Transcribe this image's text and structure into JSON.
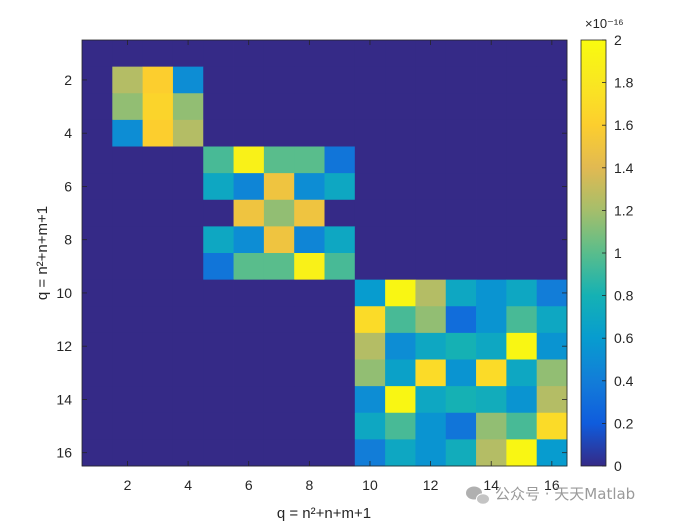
{
  "chart_data": {
    "type": "heatmap",
    "x": [
      1,
      2,
      3,
      4,
      5,
      6,
      7,
      8,
      9,
      10,
      11,
      12,
      13,
      14,
      15,
      16
    ],
    "y": [
      1,
      2,
      3,
      4,
      5,
      6,
      7,
      8,
      9,
      10,
      11,
      12,
      13,
      14,
      15,
      16
    ],
    "xlabel": "q = n²+n+m+1",
    "ylabel": "q = n²+n+m+1",
    "x_ticks": [
      "2",
      "4",
      "6",
      "8",
      "10",
      "12",
      "14",
      "16"
    ],
    "y_ticks": [
      "2",
      "4",
      "6",
      "8",
      "10",
      "12",
      "14",
      "16"
    ],
    "y_direction": "reversed",
    "colormap": "parula",
    "colorbar": {
      "clim": [
        0,
        2
      ],
      "multiplier": "×10⁻¹⁶",
      "ticks": [
        "0",
        "0.2",
        "0.4",
        "0.6",
        "0.8",
        "1",
        "1.2",
        "1.4",
        "1.6",
        "1.8",
        "2"
      ]
    },
    "z_units": "1e-16",
    "z": [
      [
        0.0,
        0.0,
        0.0,
        0.0,
        0.0,
        0.0,
        0.0,
        0.0,
        0.0,
        0.0,
        0.0,
        0.0,
        0.0,
        0.0,
        0.0,
        0.0
      ],
      [
        0.0,
        1.25,
        1.6,
        0.5,
        0.0,
        0.0,
        0.0,
        0.0,
        0.0,
        0.0,
        0.0,
        0.0,
        0.0,
        0.0,
        0.0,
        0.0
      ],
      [
        0.0,
        1.15,
        1.65,
        1.15,
        0.0,
        0.0,
        0.0,
        0.0,
        0.0,
        0.0,
        0.0,
        0.0,
        0.0,
        0.0,
        0.0,
        0.0
      ],
      [
        0.0,
        0.5,
        1.6,
        1.25,
        0.0,
        0.0,
        0.0,
        0.0,
        0.0,
        0.0,
        0.0,
        0.0,
        0.0,
        0.0,
        0.0,
        0.0
      ],
      [
        0.0,
        0.0,
        0.0,
        0.0,
        0.95,
        1.9,
        1.0,
        1.0,
        0.35,
        0.0,
        0.0,
        0.0,
        0.0,
        0.0,
        0.0,
        0.0
      ],
      [
        0.0,
        0.0,
        0.0,
        0.0,
        0.7,
        0.45,
        1.5,
        0.5,
        0.7,
        0.0,
        0.0,
        0.0,
        0.0,
        0.0,
        0.0,
        0.0
      ],
      [
        0.0,
        0.0,
        0.0,
        0.0,
        0.0,
        1.5,
        1.15,
        1.5,
        0.0,
        0.0,
        0.0,
        0.0,
        0.0,
        0.0,
        0.0,
        0.0
      ],
      [
        0.0,
        0.0,
        0.0,
        0.0,
        0.7,
        0.5,
        1.5,
        0.45,
        0.7,
        0.0,
        0.0,
        0.0,
        0.0,
        0.0,
        0.0,
        0.0
      ],
      [
        0.0,
        0.0,
        0.0,
        0.0,
        0.35,
        1.0,
        1.0,
        1.9,
        0.95,
        0.0,
        0.0,
        0.0,
        0.0,
        0.0,
        0.0,
        0.0
      ],
      [
        0.0,
        0.0,
        0.0,
        0.0,
        0.0,
        0.0,
        0.0,
        0.0,
        0.0,
        0.6,
        1.95,
        1.25,
        0.7,
        0.55,
        0.7,
        0.4
      ],
      [
        0.0,
        0.0,
        0.0,
        0.0,
        0.0,
        0.0,
        0.0,
        0.0,
        0.0,
        1.7,
        0.95,
        1.15,
        0.3,
        0.55,
        0.95,
        0.7
      ],
      [
        0.0,
        0.0,
        0.0,
        0.0,
        0.0,
        0.0,
        0.0,
        0.0,
        0.0,
        1.25,
        0.5,
        0.7,
        0.8,
        0.7,
        1.95,
        0.55
      ],
      [
        0.0,
        0.0,
        0.0,
        0.0,
        0.0,
        0.0,
        0.0,
        0.0,
        0.0,
        1.15,
        0.65,
        1.7,
        0.55,
        1.7,
        0.7,
        1.15
      ],
      [
        0.0,
        0.0,
        0.0,
        0.0,
        0.0,
        0.0,
        0.0,
        0.0,
        0.0,
        0.5,
        1.95,
        0.7,
        0.8,
        0.75,
        0.55,
        1.25
      ],
      [
        0.0,
        0.0,
        0.0,
        0.0,
        0.0,
        0.0,
        0.0,
        0.0,
        0.0,
        0.7,
        0.95,
        0.55,
        0.35,
        1.15,
        0.95,
        1.7
      ],
      [
        0.0,
        0.0,
        0.0,
        0.0,
        0.0,
        0.0,
        0.0,
        0.0,
        0.0,
        0.4,
        0.7,
        0.55,
        0.75,
        1.25,
        1.95,
        0.6
      ]
    ]
  },
  "watermark": {
    "text": "公众号 · 天天Matlab",
    "icon": "wechat-icon"
  }
}
